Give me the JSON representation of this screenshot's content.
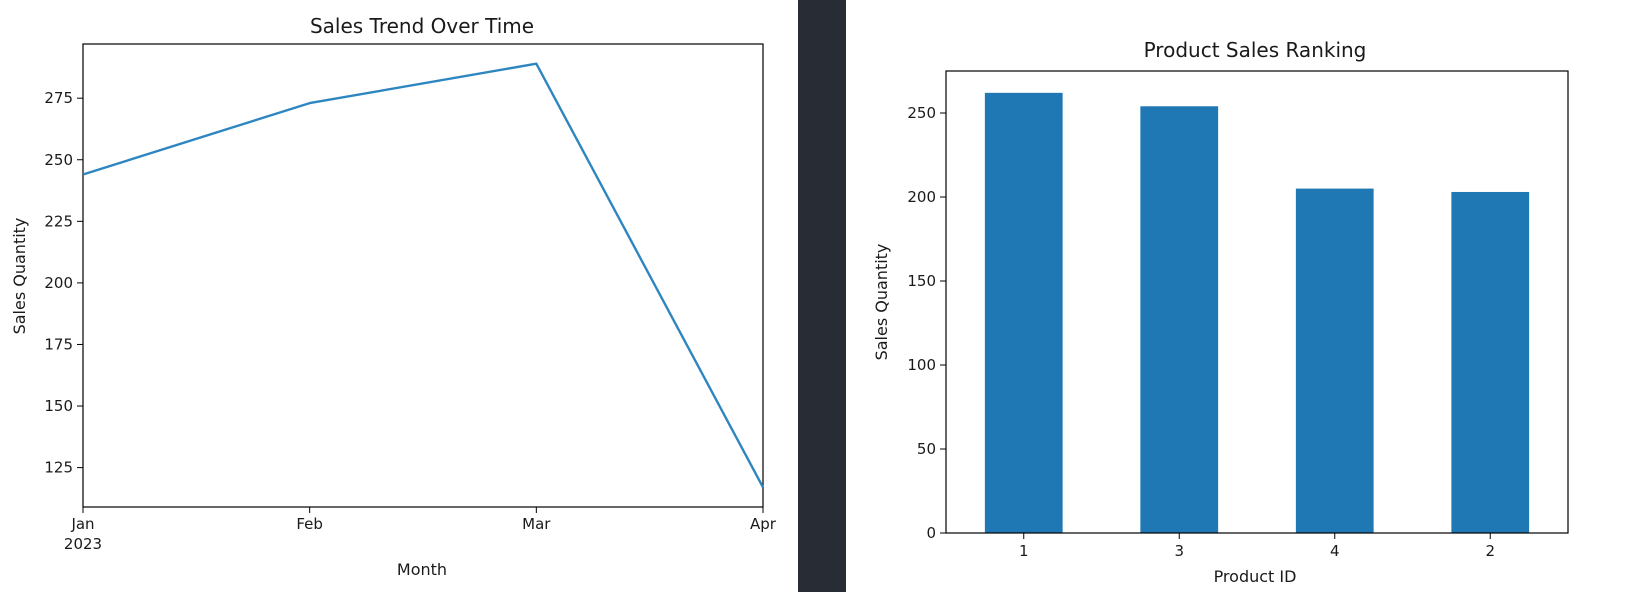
{
  "chart_data": [
    {
      "type": "line",
      "title": "Sales Trend Over Time",
      "xlabel": "Month",
      "ylabel": "Sales Quantity",
      "x": [
        "Jan",
        "Feb",
        "Mar",
        "Apr"
      ],
      "x_year_label": "2023",
      "ylim": [
        109,
        297
      ],
      "yticks": [
        125,
        150,
        175,
        200,
        225,
        250,
        275
      ],
      "grid": false,
      "series": [
        {
          "values": [
            244,
            273,
            289,
            117
          ],
          "color": "#2e86c1"
        }
      ]
    },
    {
      "type": "bar",
      "title": "Product Sales Ranking",
      "xlabel": "Product ID",
      "ylabel": "Sales Quantity",
      "categories": [
        "1",
        "3",
        "4",
        "2"
      ],
      "values": [
        262,
        254,
        205,
        203
      ],
      "ylim": [
        0,
        275
      ],
      "yticks": [
        0,
        50,
        100,
        150,
        200,
        250
      ],
      "grid": false,
      "color": "#1f77b4"
    }
  ]
}
